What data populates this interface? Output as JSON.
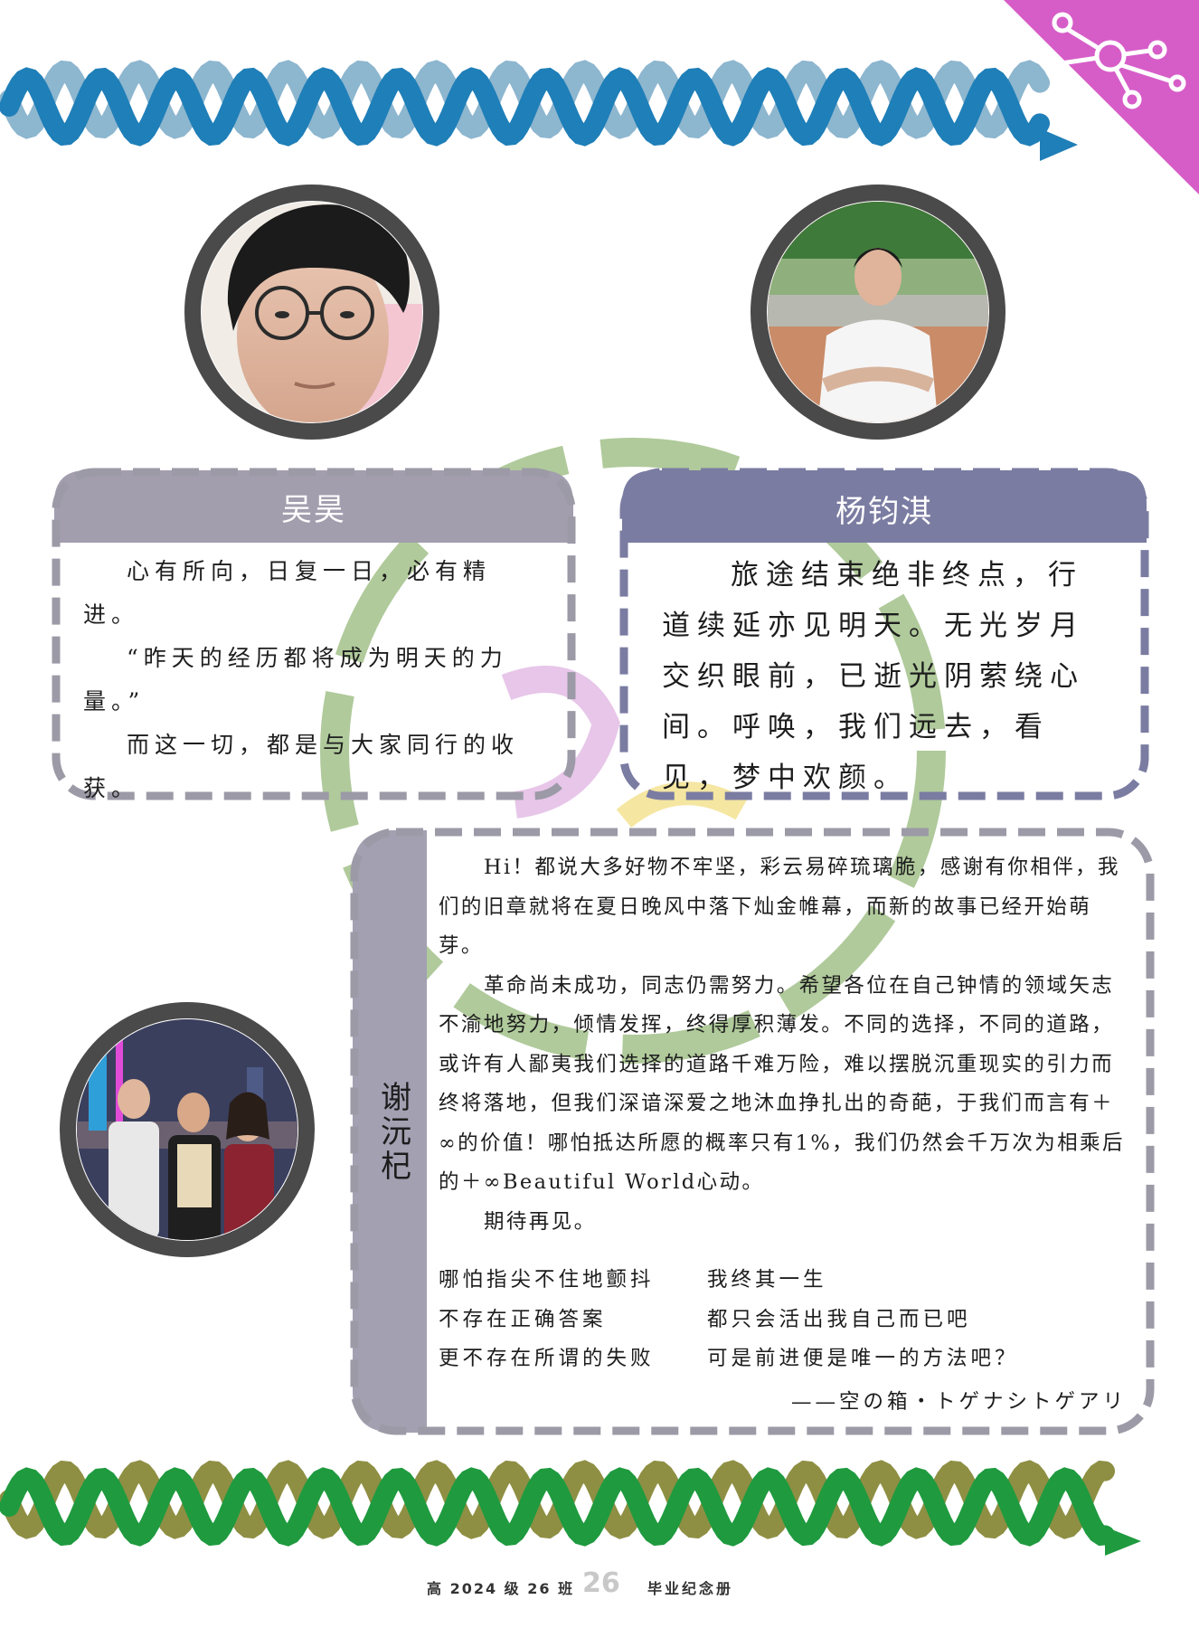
{
  "students": [
    {
      "name": "吴昊",
      "paragraphs": [
        "心有所向，日复一日，必有精进。",
        "“昨天的经历都将成为明天的力量。”",
        "而这一切，都是与大家同行的收获。"
      ]
    },
    {
      "name": "杨钧淇",
      "paragraphs": [
        "旅途结束绝非终点，行道续延亦见明天。无光岁月交织眼前，已逝光阴萦绕心间。呼唤，我们远去，看见，梦中欢颜。"
      ]
    },
    {
      "name": "谢沅杞",
      "paragraphs": [
        "Hi！都说大多好物不牢坚，彩云易碎琉璃脆，感谢有你相伴，我们的旧章就将在夏日晚风中落下灿金帷幕，而新的故事已经开始萌芽。",
        "革命尚未成功，同志仍需努力。希望各位在自己钟情的领域矢志不渝地努力，倾情发挥，终得厚积薄发。不同的选择，不同的道路，或许有人鄙夷我们选择的道路千难万险，难以摆脱沉重现实的引力而终将落地，但我们深谙深爱之地沐血挣扎出的奇葩，于我们而言有＋∞的价值！哪怕抵达所愿的概率只有1%，我们仍然会千万次为相乘后的＋∞Beautiful World心动。",
        "期待再见。"
      ],
      "poem_left": [
        "哪怕指尖不住地颤抖",
        "不存在正确答案",
        "更不存在所谓的失败"
      ],
      "poem_right": [
        "我终其一生",
        "都只会活出我自己而已吧",
        "可是前进便是唯一的方法吧？"
      ],
      "attribution": "——空の箱・トゲナシトゲアリ"
    }
  ],
  "footer": {
    "class_label": "高 2024 级 26 班",
    "page_number": "26",
    "book_title": "毕业纪念册"
  },
  "colors": {
    "helix_top_dark": "#1f7fb8",
    "helix_top_light": "#8db6cf",
    "helix_bottom_dark": "#1f9a3f",
    "helix_bottom_light": "#8e8f43",
    "corner_magenta": "#d65dc8",
    "panel_left_head": "#a39eae",
    "panel_right_head": "#7b7ca2",
    "panel_xie_head": "#a3a0b2",
    "dash_border": "#9c9aa6",
    "photo_ring": "#4a4a4a",
    "swirl_green": "#a7c490"
  }
}
